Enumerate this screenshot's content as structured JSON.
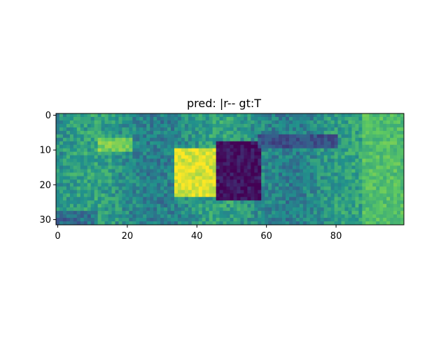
{
  "chart_data": {
    "type": "heatmap",
    "title": "pred: |r-- gt:T",
    "xlabel": "",
    "ylabel": "",
    "colormap": "viridis",
    "xlim": [
      0,
      99
    ],
    "ylim": [
      31,
      0
    ],
    "x_ticks": [
      "0",
      "20",
      "40",
      "60",
      "80"
    ],
    "y_ticks": [
      "0",
      "10",
      "20",
      "30"
    ],
    "grid": false,
    "legend": "none",
    "image_shape": [
      32,
      100
    ],
    "features": [
      {
        "name": "bright-region",
        "x_range": [
          34,
          46
        ],
        "y_range": [
          10,
          23
        ],
        "level": 0.95
      },
      {
        "name": "dark-region",
        "x_range": [
          46,
          58
        ],
        "y_range": [
          8,
          24
        ],
        "level": 0.05
      },
      {
        "name": "dark-band",
        "x_range": [
          58,
          80
        ],
        "y_range": [
          6,
          9
        ],
        "level": 0.25
      },
      {
        "name": "light-patch-left",
        "x_range": [
          12,
          21
        ],
        "y_range": [
          7,
          10
        ],
        "level": 0.78
      },
      {
        "name": "bright-band-right",
        "x_range": [
          88,
          99
        ],
        "y_range": [
          0,
          31
        ],
        "level": 0.7
      }
    ]
  }
}
